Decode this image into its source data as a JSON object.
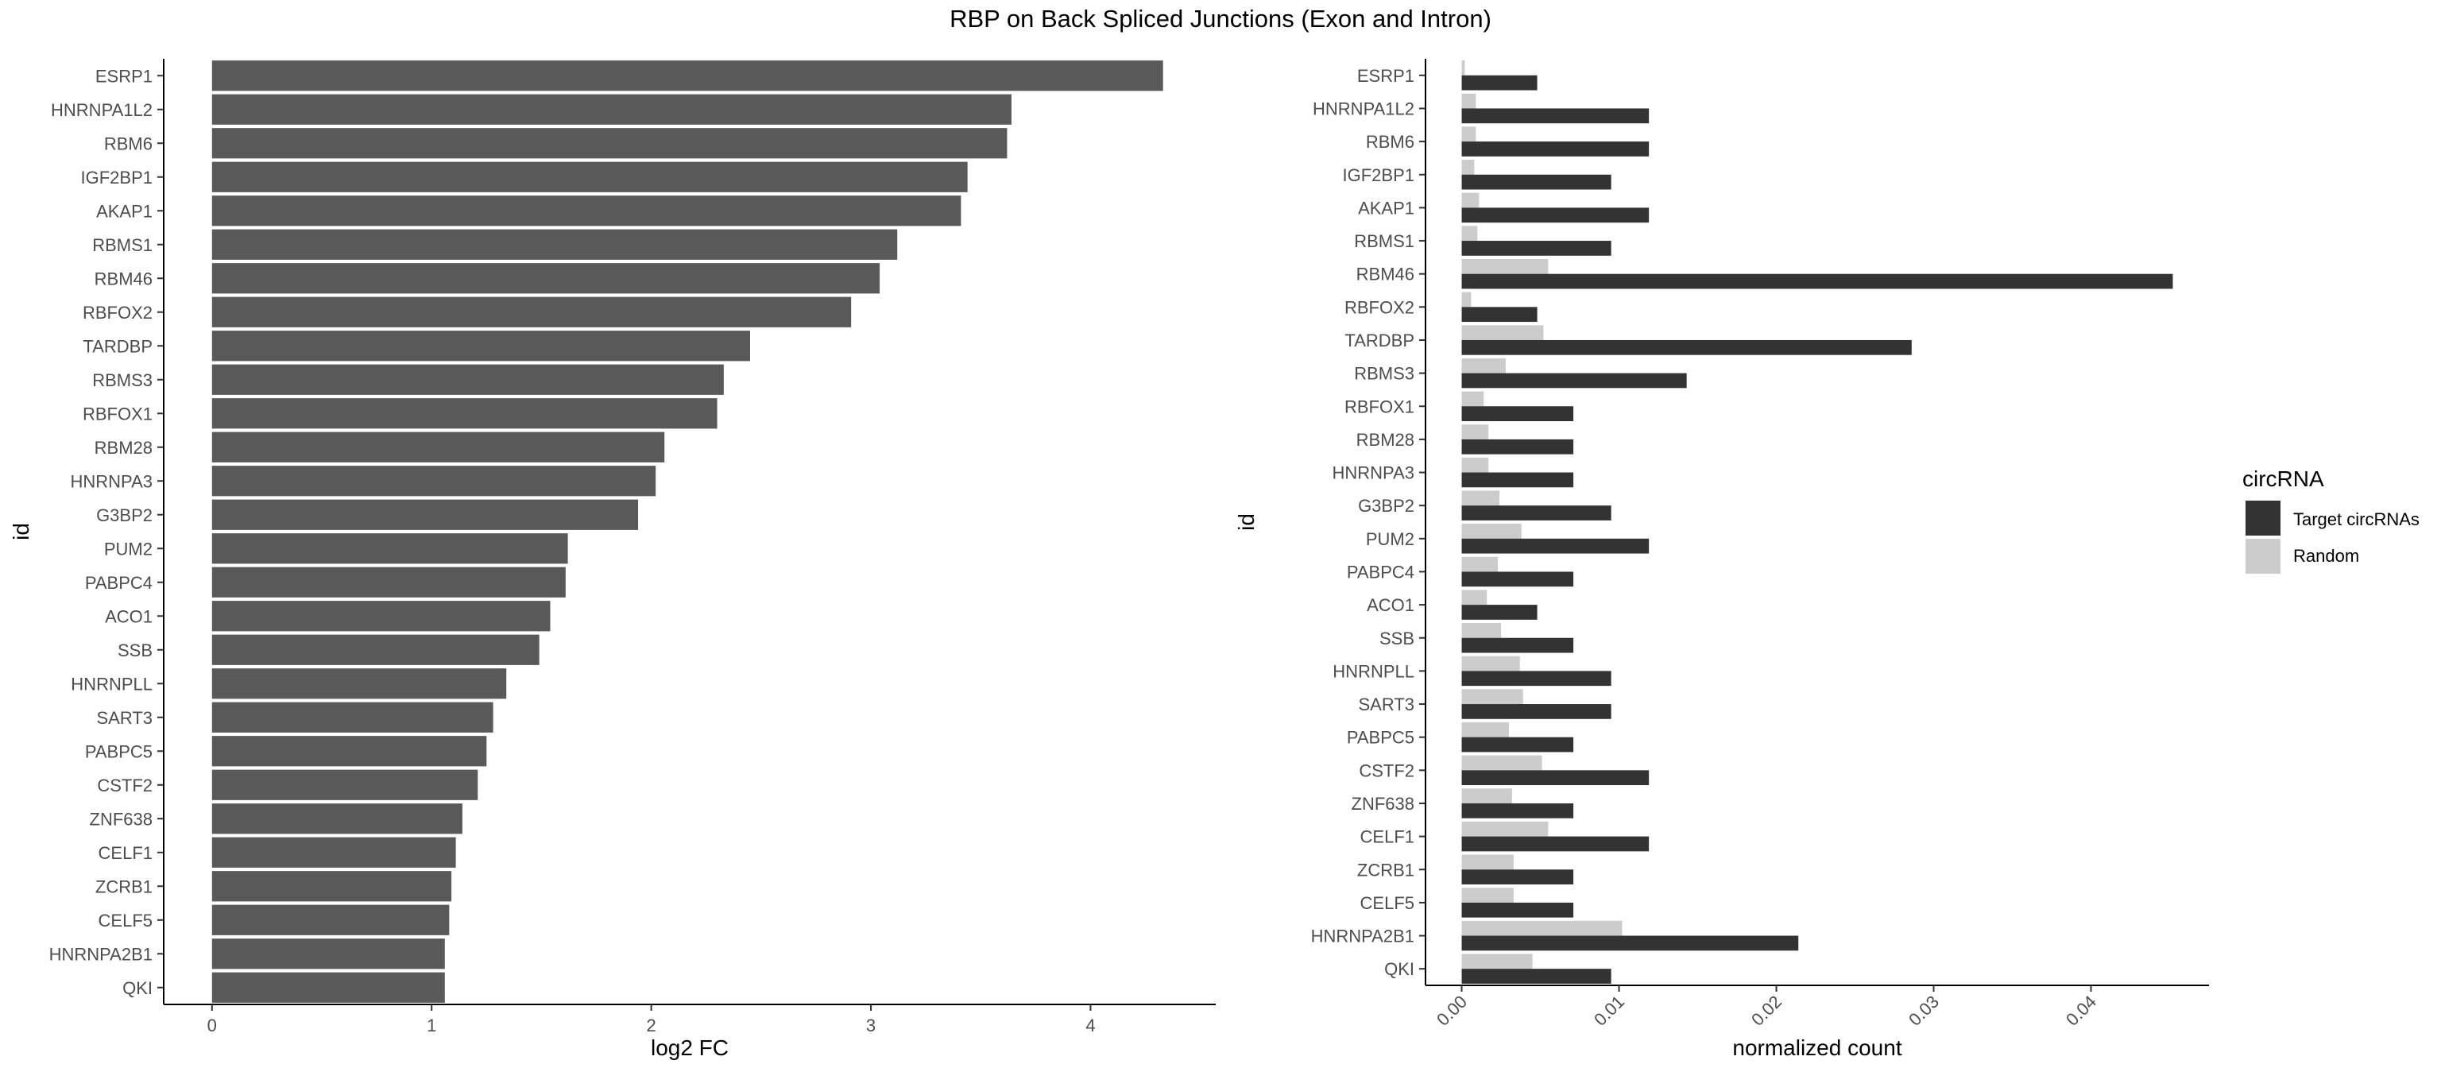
{
  "title": "RBP on Back Spliced Junctions (Exon and Intron)",
  "colors": {
    "left_bar": "#595959",
    "target": "#333333",
    "random": "#cccccc"
  },
  "chart_data": [
    {
      "type": "bar",
      "orientation": "horizontal",
      "categories": [
        "ESRP1",
        "HNRNPA1L2",
        "RBM6",
        "IGF2BP1",
        "AKAP1",
        "RBMS1",
        "RBM46",
        "RBFOX2",
        "TARDBP",
        "RBMS3",
        "RBFOX1",
        "RBM28",
        "HNRNPA3",
        "G3BP2",
        "PUM2",
        "PABPC4",
        "ACO1",
        "SSB",
        "HNRNPLL",
        "SART3",
        "PABPC5",
        "CSTF2",
        "ZNF638",
        "CELF1",
        "ZCRB1",
        "CELF5",
        "HNRNPA2B1",
        "QKI"
      ],
      "values": [
        4.33,
        3.64,
        3.62,
        3.44,
        3.41,
        3.12,
        3.04,
        2.91,
        2.45,
        2.33,
        2.3,
        2.06,
        2.02,
        1.94,
        1.62,
        1.61,
        1.54,
        1.49,
        1.34,
        1.28,
        1.25,
        1.21,
        1.14,
        1.11,
        1.09,
        1.08,
        1.06,
        1.06
      ],
      "xlabel": "log2 FC",
      "ylabel": "id",
      "xlim": [
        -0.22,
        4.57
      ],
      "xticks": [
        0,
        1,
        2,
        3,
        4
      ],
      "xtick_labels": [
        "0",
        "1",
        "2",
        "3",
        "4"
      ],
      "grid": false
    },
    {
      "type": "bar",
      "orientation": "horizontal",
      "grouped": true,
      "categories": [
        "ESRP1",
        "HNRNPA1L2",
        "RBM6",
        "IGF2BP1",
        "AKAP1",
        "RBMS1",
        "RBM46",
        "RBFOX2",
        "TARDBP",
        "RBMS3",
        "RBFOX1",
        "RBM28",
        "HNRNPA3",
        "G3BP2",
        "PUM2",
        "PABPC4",
        "ACO1",
        "SSB",
        "HNRNPLL",
        "SART3",
        "PABPC5",
        "CSTF2",
        "ZNF638",
        "CELF1",
        "ZCRB1",
        "CELF5",
        "HNRNPA2B1",
        "QKI"
      ],
      "series": [
        {
          "name": "Target circRNAs",
          "values": [
            0.0048,
            0.0119,
            0.0119,
            0.0095,
            0.0119,
            0.0095,
            0.0452,
            0.0048,
            0.0286,
            0.0143,
            0.0071,
            0.0071,
            0.0071,
            0.0095,
            0.0119,
            0.0071,
            0.0048,
            0.0071,
            0.0095,
            0.0095,
            0.0071,
            0.0119,
            0.0071,
            0.0119,
            0.0071,
            0.0071,
            0.0214,
            0.0095
          ]
        },
        {
          "name": "Random",
          "values": [
            0.0002,
            0.0009,
            0.0009,
            0.0008,
            0.0011,
            0.001,
            0.0055,
            0.0006,
            0.0052,
            0.0028,
            0.0014,
            0.0017,
            0.0017,
            0.0024,
            0.0038,
            0.0023,
            0.0016,
            0.0025,
            0.0037,
            0.0039,
            0.003,
            0.0051,
            0.0032,
            0.0055,
            0.0033,
            0.0033,
            0.0102,
            0.0045
          ]
        }
      ],
      "xlabel": "normalized count",
      "ylabel": "id",
      "xlim": [
        -0.0023,
        0.0475
      ],
      "xticks": [
        0,
        0.01,
        0.02,
        0.03,
        0.04
      ],
      "xtick_labels": [
        "0.00",
        "0.01",
        "0.02",
        "0.03",
        "0.04"
      ],
      "grid": false
    }
  ],
  "legend": {
    "title": "circRNA",
    "placement": "right",
    "items": [
      {
        "label": "Target circRNAs",
        "color": "#333333"
      },
      {
        "label": "Random",
        "color": "#cccccc"
      }
    ]
  }
}
